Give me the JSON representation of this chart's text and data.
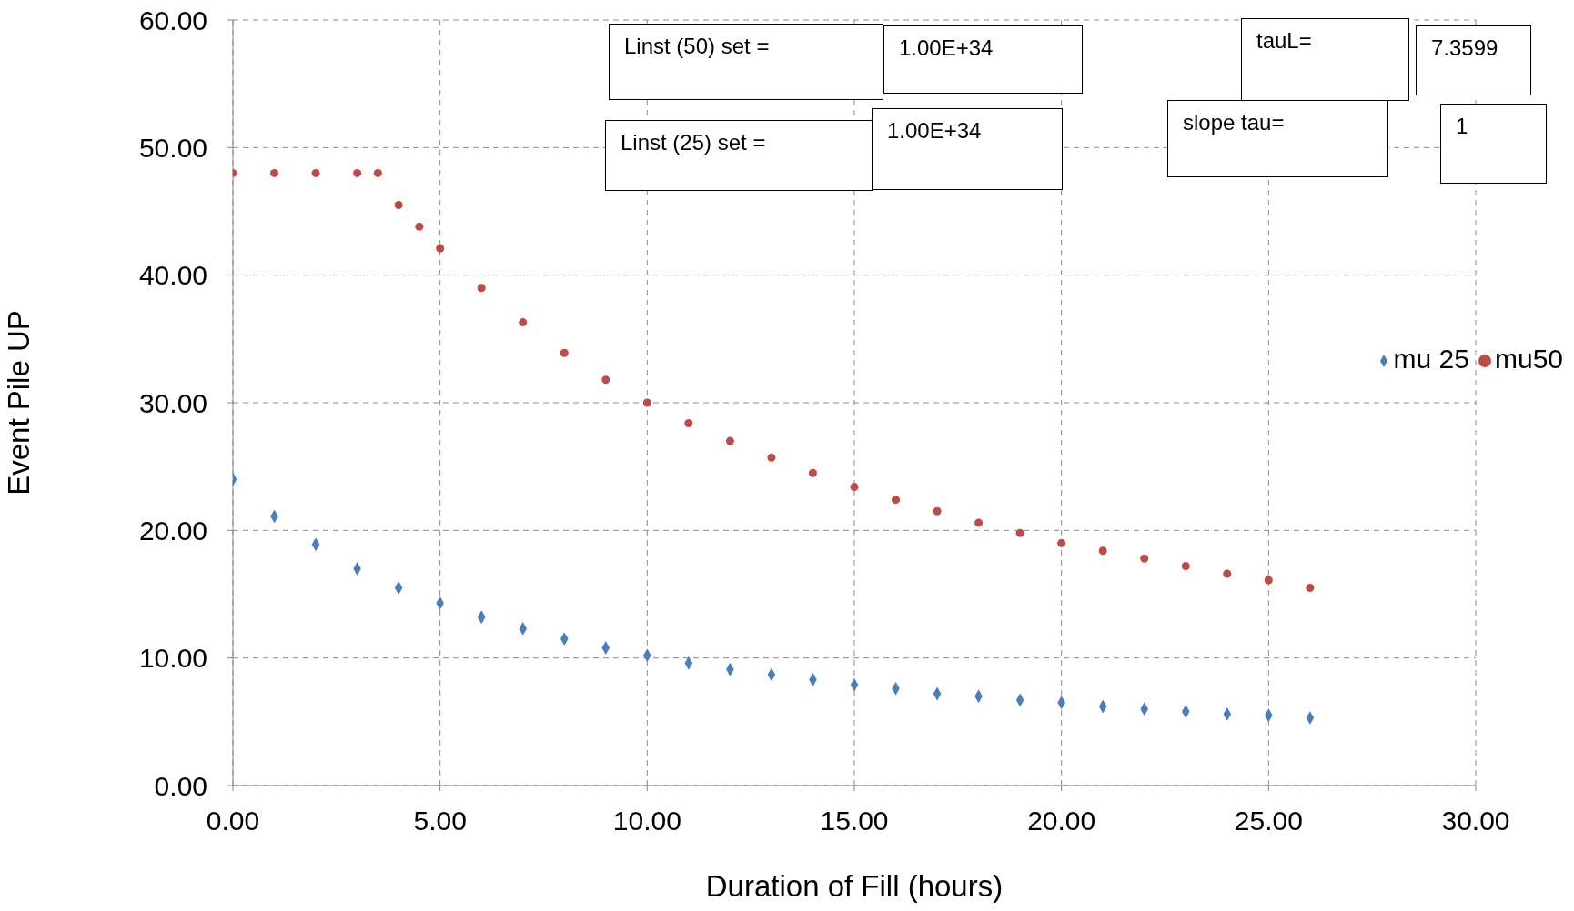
{
  "chart_data": {
    "type": "scatter",
    "xlabel": "Duration of Fill (hours)",
    "ylabel": "Event Pile UP",
    "xlim": [
      0,
      30
    ],
    "ylim": [
      0,
      60
    ],
    "xticks": [
      {
        "value": 0,
        "label": "0.00"
      },
      {
        "value": 5,
        "label": "5.00"
      },
      {
        "value": 10,
        "label": "10.00"
      },
      {
        "value": 15,
        "label": "15.00"
      },
      {
        "value": 20,
        "label": "20.00"
      },
      {
        "value": 25,
        "label": "25.00"
      },
      {
        "value": 30,
        "label": "30.00"
      }
    ],
    "yticks": [
      {
        "value": 0,
        "label": "0.00"
      },
      {
        "value": 10,
        "label": "10.00"
      },
      {
        "value": 20,
        "label": "20.00"
      },
      {
        "value": 30,
        "label": "30.00"
      },
      {
        "value": 40,
        "label": "40.00"
      },
      {
        "value": 50,
        "label": "50.00"
      },
      {
        "value": 60,
        "label": "60.00"
      }
    ],
    "grid": true,
    "legend": "right",
    "series": [
      {
        "name": "mu 25",
        "color": "#4a7ebb",
        "marker": "diamond",
        "x": [
          0,
          1,
          2,
          3,
          4,
          5,
          6,
          7,
          8,
          9,
          10,
          11,
          12,
          13,
          14,
          15,
          16,
          17,
          18,
          19,
          20,
          21,
          22,
          23,
          24,
          25,
          26
        ],
        "values": [
          24.0,
          21.1,
          18.9,
          17.0,
          15.5,
          14.3,
          13.2,
          12.3,
          11.5,
          10.8,
          10.2,
          9.6,
          9.1,
          8.7,
          8.3,
          7.9,
          7.6,
          7.2,
          7.0,
          6.7,
          6.5,
          6.2,
          6.0,
          5.8,
          5.6,
          5.5,
          5.3
        ]
      },
      {
        "name": "mu50",
        "color": "#be4b48",
        "marker": "circle",
        "x": [
          0,
          1,
          2,
          3,
          3.5,
          4,
          4.5,
          5,
          6,
          7,
          8,
          9,
          10,
          11,
          12,
          13,
          14,
          15,
          16,
          17,
          18,
          19,
          20,
          21,
          22,
          23,
          24,
          25,
          26
        ],
        "values": [
          48.0,
          48.0,
          48.0,
          48.0,
          48.0,
          45.5,
          43.8,
          42.1,
          39.0,
          36.3,
          33.9,
          31.8,
          30.0,
          28.4,
          27.0,
          25.7,
          24.5,
          23.4,
          22.4,
          21.5,
          20.6,
          19.8,
          19.0,
          18.4,
          17.8,
          17.2,
          16.6,
          16.1,
          15.5
        ]
      }
    ],
    "annotations": [
      "Linst (50) set =",
      "1.00E+34",
      "Linst (25) set =",
      "1.00E+34",
      "tauL=",
      "7.3599",
      "slope tau=",
      "1"
    ]
  }
}
